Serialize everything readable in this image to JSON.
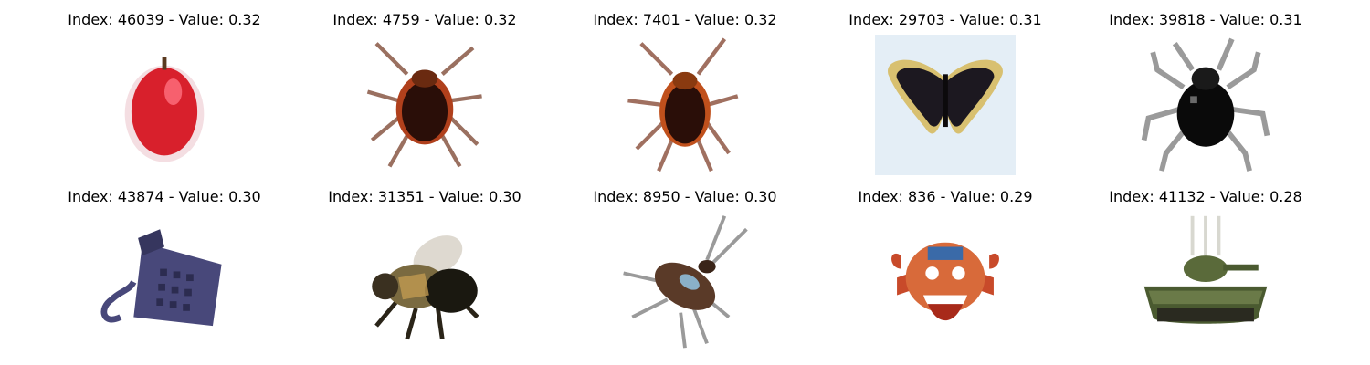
{
  "grid": {
    "items": [
      {
        "caption": "Index: 46039 - Value: 0.32",
        "icon": "apple-icon"
      },
      {
        "caption": "Index: 4759 - Value: 0.32",
        "icon": "cockroach-icon"
      },
      {
        "caption": "Index: 7401 - Value: 0.32",
        "icon": "cockroach-icon"
      },
      {
        "caption": "Index: 29703 - Value: 0.31",
        "icon": "butterfly-icon"
      },
      {
        "caption": "Index: 39818 - Value: 0.31",
        "icon": "beetle-icon"
      },
      {
        "caption": "Index: 43874 - Value: 0.30",
        "icon": "telephone-icon"
      },
      {
        "caption": "Index: 31351 - Value: 0.30",
        "icon": "bee-icon"
      },
      {
        "caption": "Index: 8950 - Value: 0.30",
        "icon": "cockroach-icon"
      },
      {
        "caption": "Index: 836 - Value: 0.29",
        "icon": "crab-icon"
      },
      {
        "caption": "Index: 41132 - Value: 0.28",
        "icon": "tank-icon"
      }
    ]
  },
  "colors": {
    "apple": "#d8202c",
    "cockroach": "#3a1a10",
    "cockroach_edge": "#b0401c",
    "butterfly": "#1c1820",
    "butterfly_edge": "#d8c070",
    "butterfly_bg": "#e4eef6",
    "beetle": "#0a0a0a",
    "phone": "#48487a",
    "bee": "#3a3020",
    "crab": "#c84a2a",
    "tank": "#4a5a30"
  }
}
